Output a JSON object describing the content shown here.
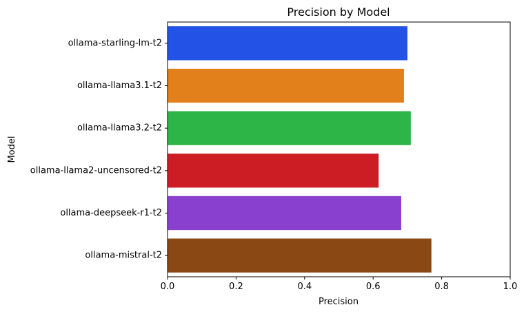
{
  "chart_data": {
    "type": "bar",
    "orientation": "horizontal",
    "title": "Precision by Model",
    "xlabel": "Precision",
    "ylabel": "Model",
    "xlim": [
      0,
      1
    ],
    "xticks": [
      "0.0",
      "0.2",
      "0.4",
      "0.6",
      "0.8",
      "1.0"
    ],
    "grid": false,
    "categories": [
      "ollama-starling-lm-t2",
      "ollama-llama3.1-t2",
      "ollama-llama3.2-t2",
      "ollama-llama2-uncensored-t2",
      "ollama-deepseek-r1-t2",
      "ollama-mistral-t2"
    ],
    "values": [
      0.7,
      0.69,
      0.71,
      0.616,
      0.682,
      0.77
    ],
    "colors": [
      "#2352e6",
      "#e2801c",
      "#2eb548",
      "#cc1c24",
      "#8a40cf",
      "#8a4814"
    ]
  }
}
